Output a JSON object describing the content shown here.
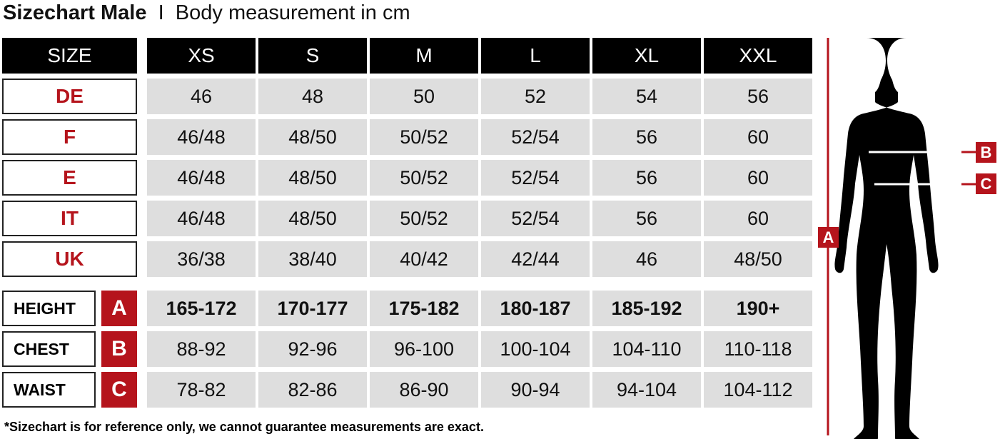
{
  "title": {
    "bold": "Sizechart Male",
    "separator": "I",
    "subtitle": "Body measurement in cm"
  },
  "header": {
    "label": "SIZE",
    "sizes": [
      "XS",
      "S",
      "M",
      "L",
      "XL",
      "XXL"
    ]
  },
  "conversion_rows": [
    {
      "label": "DE",
      "values": [
        "46",
        "48",
        "50",
        "52",
        "54",
        "56"
      ]
    },
    {
      "label": "F",
      "values": [
        "46/48",
        "48/50",
        "50/52",
        "52/54",
        "56",
        "60"
      ]
    },
    {
      "label": "E",
      "values": [
        "46/48",
        "48/50",
        "50/52",
        "52/54",
        "56",
        "60"
      ]
    },
    {
      "label": "IT",
      "values": [
        "46/48",
        "48/50",
        "50/52",
        "52/54",
        "56",
        "60"
      ]
    },
    {
      "label": "UK",
      "values": [
        "36/38",
        "38/40",
        "40/42",
        "42/44",
        "46",
        "48/50"
      ]
    }
  ],
  "measurement_rows": [
    {
      "label": "HEIGHT",
      "marker": "A",
      "values": [
        "165-172",
        "170-177",
        "175-182",
        "180-187",
        "185-192",
        "190+"
      ]
    },
    {
      "label": "CHEST",
      "marker": "B",
      "values": [
        "88-92",
        "92-96",
        "96-100",
        "100-104",
        "104-110",
        "110-118"
      ]
    },
    {
      "label": "WAIST",
      "marker": "C",
      "values": [
        "78-82",
        "82-86",
        "86-90",
        "90-94",
        "94-104",
        "104-112"
      ]
    }
  ],
  "figure": {
    "markers": {
      "height": "A",
      "chest": "B",
      "waist": "C"
    }
  },
  "footer": "*Sizechart is for reference only, we cannot guarantee measurements are exact.",
  "colors": {
    "accent": "#b5141c",
    "header_bg": "#000000",
    "cell_bg": "#dedede"
  }
}
